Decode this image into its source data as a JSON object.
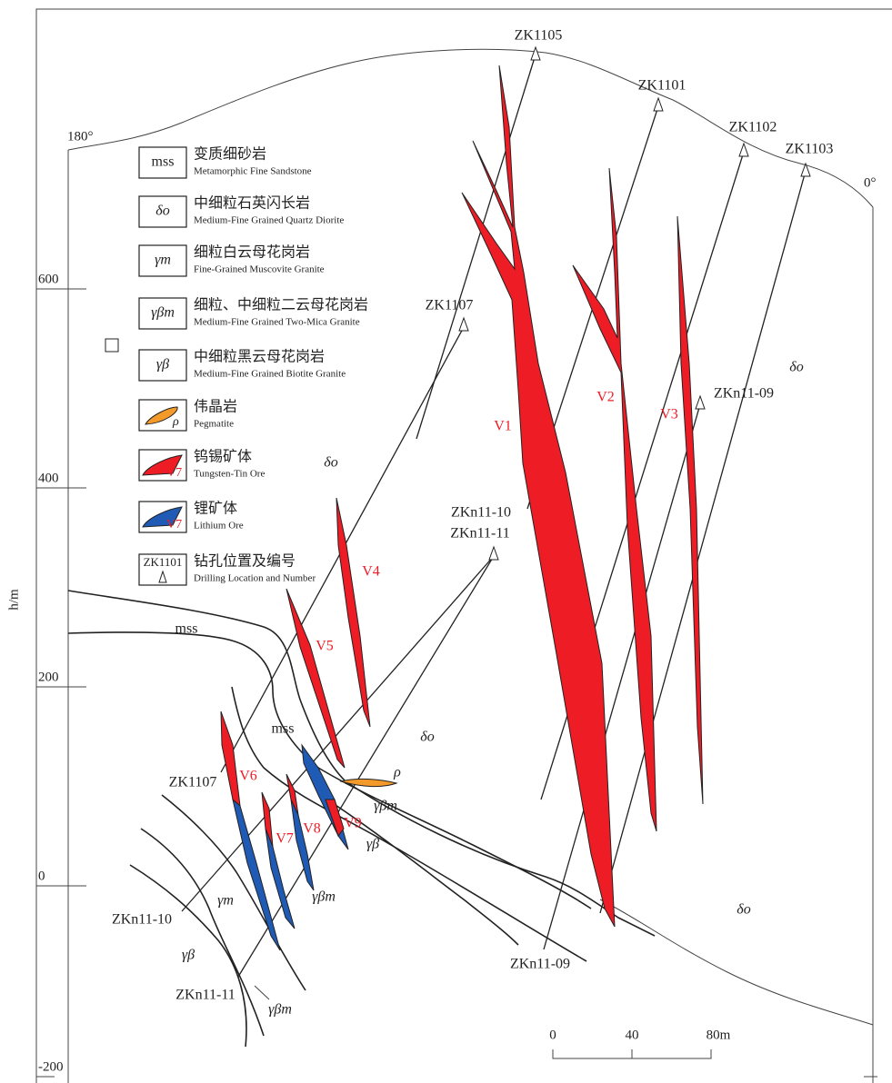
{
  "axis": {
    "label": "h/m",
    "ticks": [
      "600",
      "400",
      "200",
      "0",
      "-200"
    ]
  },
  "orientation": {
    "left": "180°",
    "right": "0°"
  },
  "legend": [
    {
      "symbol": "mss",
      "zh": "变质细砂岩",
      "en": "Metamorphic Fine Sandstone"
    },
    {
      "symbol": "δo",
      "zh": "中细粒石英闪长岩",
      "en": "Medium-Fine Grained Quartz Diorite"
    },
    {
      "symbol": "γm",
      "zh": "细粒白云母花岗岩",
      "en": "Fine-Grained Muscovite Granite"
    },
    {
      "symbol": "γβm",
      "zh": "细粒、中细粒二云母花岗岩",
      "en": "Medium-Fine Grained Two-Mica Granite"
    },
    {
      "symbol": "γβ",
      "zh": "中细粒黑云母花岗岩",
      "en": "Medium-Fine Grained Biotite Granite"
    },
    {
      "symbol": "ρ",
      "zh": "伟晶岩",
      "en": "Pegmatite"
    },
    {
      "symbol": "V7",
      "zh": "钨锡矿体",
      "en": "Tungsten-Tin Ore"
    },
    {
      "symbol": "V7",
      "zh": "锂矿体",
      "en": "Lithium Ore"
    },
    {
      "symbol": "ZK1101",
      "zh": "钻孔位置及编号",
      "en": "Drilling Location and Number"
    }
  ],
  "drill_holes": [
    "ZK1105",
    "ZK1101",
    "ZK1102",
    "ZK1103",
    "ZK1107",
    "ZKn11-09",
    "ZKn11-10",
    "ZKn11-11",
    "ZK1107",
    "ZKn11-10",
    "ZKn11-11",
    "ZKn11-09"
  ],
  "ore_bodies": [
    "V1",
    "V2",
    "V3",
    "V4",
    "V5",
    "V6",
    "V7",
    "V8",
    "V9"
  ],
  "rock_labels": [
    "δo",
    "δo",
    "δo",
    "δo",
    "mss",
    "mss",
    "ρ",
    "γβm",
    "γβ",
    "γβm",
    "γm",
    "γβ",
    "γβm"
  ],
  "scale": [
    "0",
    "40",
    "80m"
  ]
}
